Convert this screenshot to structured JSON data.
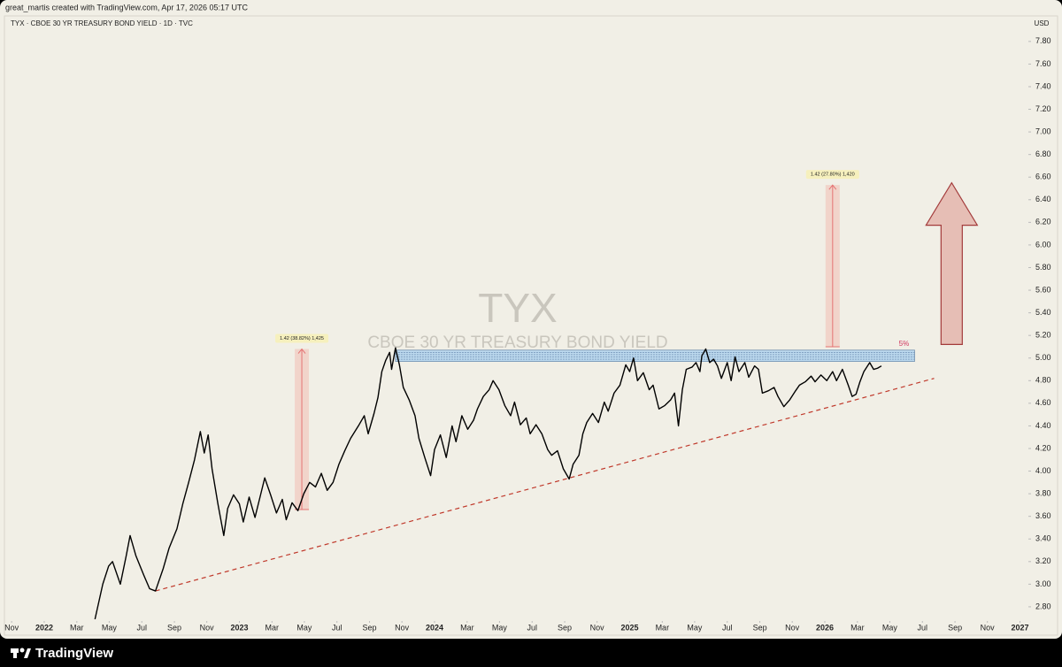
{
  "header": {
    "credit": "great_martis created with TradingView.com, Apr 17, 2026 05:17 UTC",
    "brand": "TradingView"
  },
  "chart_data": {
    "type": "line",
    "title": "TYX · CBOE 30 YR TREASURY BOND YIELD · 1D · TVC",
    "watermark": {
      "symbol": "TYX",
      "name": "CBOE 30 YR TREASURY BOND YIELD"
    },
    "currency": "USD",
    "color": "#000000",
    "x": [
      2022.26,
      2022.3,
      2022.33,
      2022.35,
      2022.39,
      2022.42,
      2022.44,
      2022.47,
      2022.51,
      2022.54,
      2022.57,
      2022.61,
      2022.64,
      2022.68,
      2022.71,
      2022.74,
      2022.77,
      2022.8,
      2022.82,
      2022.84,
      2022.86,
      2022.89,
      2022.92,
      2022.94,
      2022.97,
      2023.0,
      2023.02,
      2023.05,
      2023.08,
      2023.11,
      2023.13,
      2023.16,
      2023.19,
      2023.22,
      2023.24,
      2023.27,
      2023.3,
      2023.33,
      2023.36,
      2023.39,
      2023.42,
      2023.45,
      2023.48,
      2023.51,
      2023.54,
      2023.57,
      2023.61,
      2023.64,
      2023.66,
      2023.69,
      2023.71,
      2023.73,
      2023.75,
      2023.77,
      2023.78,
      2023.8,
      2023.82,
      2023.84,
      2023.87,
      2023.9,
      2023.92,
      2023.95,
      2023.98,
      2024.0,
      2024.03,
      2024.06,
      2024.09,
      2024.11,
      2024.14,
      2024.17,
      2024.2,
      2024.22,
      2024.25,
      2024.28,
      2024.3,
      2024.33,
      2024.36,
      2024.39,
      2024.41,
      2024.44,
      2024.47,
      2024.49,
      2024.52,
      2024.55,
      2024.58,
      2024.6,
      2024.63,
      2024.66,
      2024.69,
      2024.71,
      2024.74,
      2024.76,
      2024.78,
      2024.81,
      2024.84,
      2024.87,
      2024.89,
      2024.92,
      2024.95,
      2024.98,
      2025.0,
      2025.02,
      2025.04,
      2025.07,
      2025.1,
      2025.12,
      2025.15,
      2025.18,
      2025.21,
      2025.23,
      2025.25,
      2025.27,
      2025.29,
      2025.32,
      2025.34,
      2025.36,
      2025.37,
      2025.39,
      2025.41,
      2025.43,
      2025.45,
      2025.47,
      2025.5,
      2025.52,
      2025.54,
      2025.56,
      2025.59,
      2025.61,
      2025.64,
      2025.66,
      2025.68,
      2025.71,
      2025.74,
      2025.76,
      2025.79,
      2025.82,
      2025.85,
      2025.87,
      2025.9,
      2025.93,
      2025.95,
      2025.98,
      2026.01,
      2026.04,
      2026.06,
      2026.09,
      2026.12,
      2026.14,
      2026.16,
      2026.18,
      2026.2,
      2026.23,
      2026.25,
      2026.27,
      2026.29
    ],
    "values": [
      2.69,
      3.0,
      3.16,
      3.2,
      3.0,
      3.25,
      3.43,
      3.25,
      3.08,
      2.96,
      2.94,
      3.14,
      3.32,
      3.49,
      3.71,
      3.9,
      4.1,
      4.35,
      4.16,
      4.32,
      4.02,
      3.71,
      3.43,
      3.67,
      3.79,
      3.71,
      3.55,
      3.77,
      3.59,
      3.8,
      3.94,
      3.79,
      3.63,
      3.75,
      3.57,
      3.72,
      3.65,
      3.8,
      3.9,
      3.86,
      3.98,
      3.83,
      3.9,
      4.06,
      4.18,
      4.29,
      4.4,
      4.49,
      4.33,
      4.51,
      4.65,
      4.88,
      4.98,
      5.05,
      4.9,
      5.09,
      4.94,
      4.74,
      4.63,
      4.49,
      4.29,
      4.12,
      3.96,
      4.19,
      4.32,
      4.12,
      4.4,
      4.26,
      4.49,
      4.37,
      4.45,
      4.55,
      4.66,
      4.72,
      4.8,
      4.72,
      4.58,
      4.49,
      4.61,
      4.41,
      4.47,
      4.33,
      4.41,
      4.33,
      4.19,
      4.14,
      4.18,
      4.02,
      3.93,
      4.06,
      4.14,
      4.33,
      4.43,
      4.51,
      4.43,
      4.61,
      4.53,
      4.69,
      4.76,
      4.94,
      4.88,
      5.0,
      4.8,
      4.87,
      4.72,
      4.76,
      4.55,
      4.58,
      4.63,
      4.69,
      4.4,
      4.72,
      4.9,
      4.92,
      4.96,
      4.88,
      5.02,
      5.08,
      4.96,
      4.99,
      4.93,
      4.82,
      4.96,
      4.8,
      5.01,
      4.88,
      4.96,
      4.83,
      4.93,
      4.9,
      4.69,
      4.71,
      4.74,
      4.66,
      4.57,
      4.63,
      4.71,
      4.76,
      4.79,
      4.84,
      4.79,
      4.85,
      4.8,
      4.88,
      4.8,
      4.9,
      4.76,
      4.66,
      4.68,
      4.79,
      4.88,
      4.96,
      4.9,
      4.91,
      4.93
    ],
    "trendline": {
      "x": [
        2022.57,
        2026.56
      ],
      "values": [
        2.94,
        4.82
      ],
      "color": "#c0392b"
    },
    "zone": {
      "x": [
        2023.8,
        2026.46
      ],
      "values": [
        4.97,
        5.07
      ],
      "label": "5%",
      "color": "#bcd9ee"
    },
    "measurements": [
      {
        "x": 2023.32,
        "from": 3.66,
        "to": 5.08,
        "label": "1.42 (38.82%) 1,425"
      },
      {
        "x": 2026.04,
        "from": 5.1,
        "to": 6.53,
        "label": "1.42 (27.80%) 1,420"
      }
    ],
    "arrow": {
      "x": 2026.65,
      "from": 5.12,
      "to": 6.55
    },
    "xlim": [
      2021.796,
      2027.034
    ],
    "ylim": [
      2.69,
      8.01
    ],
    "xticks": [
      {
        "value": 2021.833,
        "label": "Nov"
      },
      2022,
      {
        "value": 2022.167,
        "label": "Mar"
      },
      {
        "value": 2022.333,
        "label": "May"
      },
      {
        "value": 2022.5,
        "label": "Jul"
      },
      {
        "value": 2022.667,
        "label": "Sep"
      },
      {
        "value": 2022.833,
        "label": "Nov"
      },
      2023,
      {
        "value": 2023.167,
        "label": "Mar"
      },
      {
        "value": 2023.333,
        "label": "May"
      },
      {
        "value": 2023.5,
        "label": "Jul"
      },
      {
        "value": 2023.667,
        "label": "Sep"
      },
      {
        "value": 2023.833,
        "label": "Nov"
      },
      2024,
      {
        "value": 2024.167,
        "label": "Mar"
      },
      {
        "value": 2024.333,
        "label": "May"
      },
      {
        "value": 2024.5,
        "label": "Jul"
      },
      {
        "value": 2024.667,
        "label": "Sep"
      },
      {
        "value": 2024.833,
        "label": "Nov"
      },
      2025,
      {
        "value": 2025.167,
        "label": "Mar"
      },
      {
        "value": 2025.333,
        "label": "May"
      },
      {
        "value": 2025.5,
        "label": "Jul"
      },
      {
        "value": 2025.667,
        "label": "Sep"
      },
      {
        "value": 2025.833,
        "label": "Nov"
      },
      2026,
      {
        "value": 2026.167,
        "label": "Mar"
      },
      {
        "value": 2026.333,
        "label": "May"
      },
      {
        "value": 2026.5,
        "label": "Jul"
      },
      {
        "value": 2026.667,
        "label": "Sep"
      },
      {
        "value": 2026.833,
        "label": "Nov"
      },
      2027
    ],
    "yticks": [
      {
        "value": 2.8,
        "label": "2.80"
      },
      {
        "value": 3.0,
        "label": "3.00"
      },
      {
        "value": 3.2,
        "label": "3.20"
      },
      {
        "value": 3.4,
        "label": "3.40"
      },
      {
        "value": 3.6,
        "label": "3.60"
      },
      {
        "value": 3.8,
        "label": "3.80"
      },
      {
        "value": 4.0,
        "label": "4.00"
      },
      {
        "value": 4.2,
        "label": "4.20"
      },
      {
        "value": 4.4,
        "label": "4.40"
      },
      {
        "value": 4.6,
        "label": "4.60"
      },
      {
        "value": 4.8,
        "label": "4.80"
      },
      {
        "value": 5.0,
        "label": "5.00"
      },
      {
        "value": 5.2,
        "label": "5.20"
      },
      {
        "value": 5.4,
        "label": "5.40"
      },
      {
        "value": 5.6,
        "label": "5.60"
      },
      {
        "value": 5.8,
        "label": "5.80"
      },
      {
        "value": 6.0,
        "label": "6.00"
      },
      {
        "value": 6.2,
        "label": "6.20"
      },
      {
        "value": 6.4,
        "label": "6.40"
      },
      {
        "value": 6.6,
        "label": "6.60"
      },
      {
        "value": 6.8,
        "label": "6.80"
      },
      {
        "value": 7.0,
        "label": "7.00"
      },
      {
        "value": 7.2,
        "label": "7.20"
      },
      {
        "value": 7.4,
        "label": "7.40"
      },
      {
        "value": 7.6,
        "label": "7.60"
      },
      {
        "value": 7.8,
        "label": "7.80"
      }
    ],
    "grid": false
  }
}
